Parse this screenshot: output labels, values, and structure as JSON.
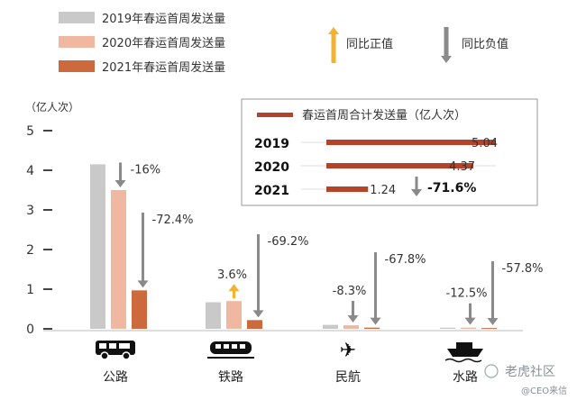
{
  "chart_data": {
    "type": "bar",
    "ylabel": "（亿人次）",
    "ylim": [
      0,
      5
    ],
    "yticks": [
      "0",
      "1",
      "2",
      "3",
      "4",
      "5"
    ],
    "categories": [
      "公路",
      "铁路",
      "民航",
      "水路"
    ],
    "category_icons": [
      "bus-icon",
      "train-icon",
      "airplane-icon",
      "ship-icon"
    ],
    "series": [
      {
        "name": "2019年春运首周发送量",
        "color": "#c9c9c9",
        "values": [
          4.15,
          0.67,
          0.1,
          0.03
        ]
      },
      {
        "name": "2020年春运首周发送量",
        "color": "#f0b8a0",
        "values": [
          3.5,
          0.7,
          0.09,
          0.03
        ]
      },
      {
        "name": "2021年春运首周发送量",
        "color": "#cc6a3e",
        "values": [
          0.97,
          0.22,
          0.03,
          0.02
        ]
      }
    ],
    "changes": [
      {
        "vs2019to2020": "-16%",
        "vs2020to2021": "-72.4%",
        "dir2020": "down"
      },
      {
        "vs2019to2020": "3.6%",
        "vs2020to2021": "-69.2%",
        "dir2020": "up"
      },
      {
        "vs2019to2020": "-8.3%",
        "vs2020to2021": "-67.8%",
        "dir2020": "down"
      },
      {
        "vs2019to2020": "-12.5%",
        "vs2020to2021": "-57.8%",
        "dir2020": "down"
      }
    ],
    "direction_legend": {
      "up": "同比正值",
      "down": "同比负值"
    },
    "colors": {
      "arrow_up": "#f2b233",
      "arrow_down": "#8a8a8a",
      "total_bar": "#b5432a"
    },
    "total_panel": {
      "title": "春运首周合计发送量（亿人次）",
      "rows": [
        {
          "year": "2019",
          "value": 5.04,
          "label": "5.04"
        },
        {
          "year": "2020",
          "value": 4.37,
          "label": "4.37"
        },
        {
          "year": "2021",
          "value": 1.24,
          "label": "1.24"
        }
      ],
      "change": "-71.6%",
      "change_dir": "down"
    },
    "grid": false,
    "legend_position": "top-left"
  },
  "watermark": {
    "brand": "老虎社区",
    "source": "@CEO来信"
  }
}
